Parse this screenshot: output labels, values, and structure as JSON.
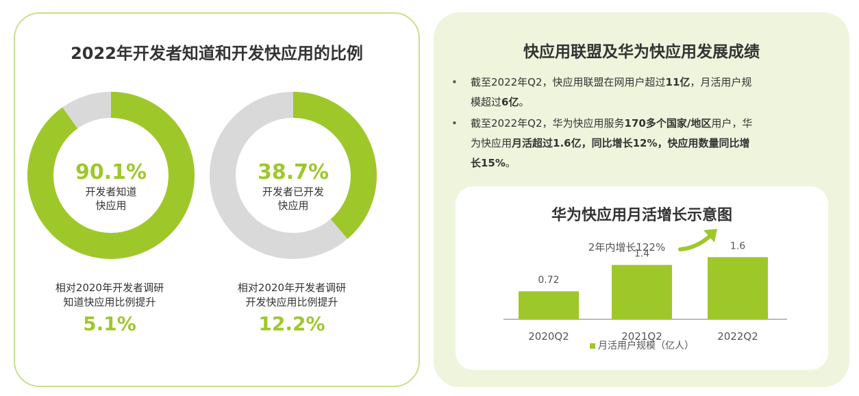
{
  "colors": {
    "accent": "#9ec82a",
    "track": "#d9d9d9",
    "border": "#c8e08a",
    "panel_bg": "#eef5dc"
  },
  "left": {
    "title": "2022年开发者知道和开发快应用的比例",
    "donuts": [
      {
        "value": "90.1%",
        "fraction": 0.901,
        "label_line1": "开发者知道",
        "label_line2": "快应用",
        "note_line1": "相对2020年开发者调研",
        "note_line2": "知道快应用比例提升",
        "note_value": "5.1%"
      },
      {
        "value": "38.7%",
        "fraction": 0.387,
        "label_line1": "开发者已开发",
        "label_line2": "快应用",
        "note_line1": "相对2020年开发者调研",
        "note_line2": "开发快应用比例提升",
        "note_value": "12.2%"
      }
    ]
  },
  "right": {
    "title": "快应用联盟及华为快应用发展成绩",
    "bullets": [
      {
        "marker": "•",
        "line1_a": "截至2022年Q2，快应用联盟在网用户超过",
        "line1_b": "11亿",
        "line1_c": "，月活用户规",
        "line2_a": "模超过",
        "line2_b": "6亿",
        "line2_c": "。"
      },
      {
        "marker": "•",
        "line1_a": "截至2022年Q2，华为快应用服务",
        "line1_b": "170多个国家/地区",
        "line1_c": "用户，华",
        "line2_a": "为快应用",
        "line2_b": "月活超过1.6亿，同比增长12%，快应用数量同比增",
        "line3_b": "长15%",
        "line3_c": "。"
      }
    ]
  },
  "chart_data": {
    "type": "bar",
    "title": "华为快应用月活增长示意图",
    "categories": [
      "2020Q2",
      "2021Q2",
      "2022Q2"
    ],
    "series": [
      {
        "name": "月活用户规模（亿人）",
        "values": [
          0.72,
          1.4,
          1.6
        ]
      }
    ],
    "data_labels": [
      "0.72",
      "1.4",
      "1.6"
    ],
    "annotation": "2年内增长122%",
    "ylim": [
      0,
      1.8
    ],
    "legend": "bottom-center"
  }
}
